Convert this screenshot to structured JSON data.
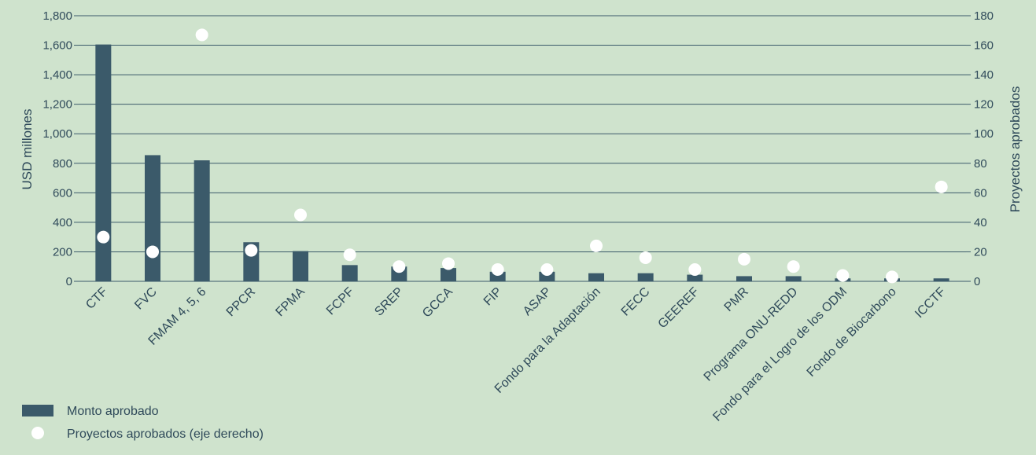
{
  "colors": {
    "background": "#cfe3cd",
    "bar": "#3b5a6a",
    "point": "#ffffff",
    "grid": "#3b5a6a",
    "text": "#2f4a5a"
  },
  "chart_data": {
    "type": "bar",
    "categories": [
      "CTF",
      "FVC",
      "FMAM 4, 5, 6",
      "PPCR",
      "FPMA",
      "FCPF",
      "SREP",
      "GCCA",
      "FIP",
      "ASAP",
      "Fondo para la Adaptación",
      "FECC",
      "GEEREF",
      "PMR",
      "Programa ONU-REDD",
      "Fondo para el Logro de los ODM",
      "Fondo de Biocarbono",
      "ICCTF"
    ],
    "series": [
      {
        "name": "Monto aprobado",
        "kind": "bar",
        "axis": "left",
        "values": [
          1605,
          855,
          820,
          265,
          205,
          110,
          100,
          90,
          65,
          65,
          55,
          55,
          45,
          35,
          35,
          20,
          20,
          20
        ]
      },
      {
        "name": "Proyectos aprobados (eje derecho)",
        "kind": "scatter",
        "axis": "right",
        "values": [
          30,
          20,
          167,
          21,
          45,
          18,
          10,
          12,
          8,
          8,
          24,
          16,
          8,
          15,
          10,
          4,
          3,
          64
        ]
      }
    ],
    "ylabel": "USD millones",
    "ylim": [
      0,
      1800
    ],
    "yticks": [
      "0",
      "200",
      "400",
      "600",
      "800",
      "1,000",
      "1,200",
      "1,400",
      "1,600",
      "1,800"
    ],
    "y2label": "Proyectos aprobados",
    "y2lim": [
      0,
      180
    ],
    "y2ticks": [
      "0",
      "20",
      "40",
      "60",
      "80",
      "100",
      "120",
      "140",
      "160",
      "180"
    ],
    "grid": true,
    "legend_position": "bottom-left"
  }
}
